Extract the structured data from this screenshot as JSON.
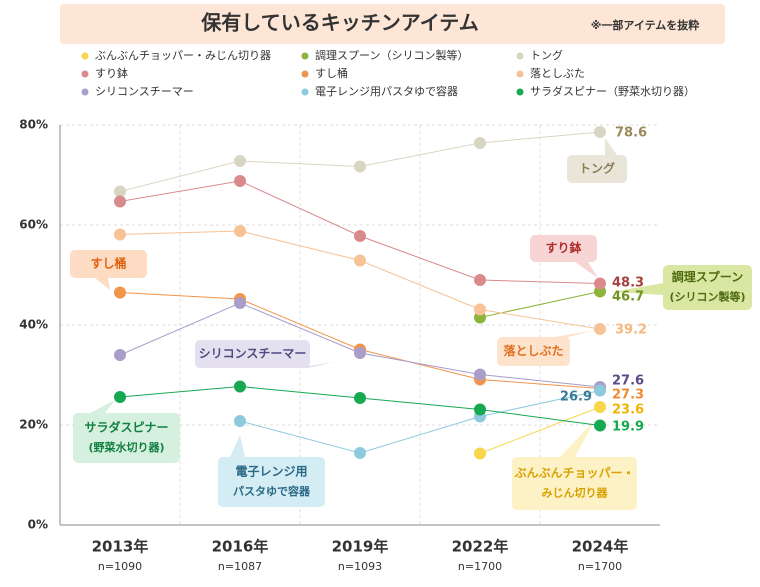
{
  "chart_data": {
    "type": "line",
    "title": "保有しているキッチンアイテム",
    "note": "※一部アイテムを抜粋",
    "categories": [
      "2013年",
      "2016年",
      "2019年",
      "2022年",
      "2024年"
    ],
    "category_notes": [
      "n=1090",
      "n=1087",
      "n=1093",
      "n=1700",
      "n=1700"
    ],
    "ylim": [
      0,
      80
    ],
    "yticks": [
      {
        "value": 0,
        "label": "0%"
      },
      {
        "value": 20,
        "label": "20%"
      },
      {
        "value": 40,
        "label": "40%"
      },
      {
        "value": 60,
        "label": "60%"
      },
      {
        "value": 80,
        "label": "80%"
      }
    ],
    "grid": true,
    "series": [
      {
        "name": "ぶんぶんチョッパー・みじん切り器",
        "color": "#f7d64a",
        "label_color": "#f0b400",
        "callout": [
          "ぶんぶんチョッパー・",
          "みじん切り器"
        ],
        "values": [
          null,
          null,
          null,
          14.3,
          23.6
        ]
      },
      {
        "name": "調理スプーン（シリコン製等）",
        "color": "#8db33a",
        "label_color": "#6f9420",
        "callout": [
          "調理スプーン",
          "(シリコン製等)"
        ],
        "values": [
          null,
          null,
          null,
          41.5,
          46.7
        ]
      },
      {
        "name": "トング",
        "color": "#d9d5c3",
        "label_color": "#9a8a5a",
        "callout": [
          "トング"
        ],
        "values": [
          66.7,
          72.8,
          71.7,
          76.4,
          78.6
        ]
      },
      {
        "name": "すり鉢",
        "color": "#d98a8c",
        "label_color": "#a8403f",
        "callout": [
          "すり鉢"
        ],
        "values": [
          64.7,
          68.8,
          57.8,
          49.0,
          48.3
        ]
      },
      {
        "name": "すし桶",
        "color": "#f0954a",
        "label_color": "#f08a30",
        "callout": [
          "すし桶"
        ],
        "values": [
          46.5,
          45.2,
          35.1,
          29.1,
          27.3
        ]
      },
      {
        "name": "落としぶた",
        "color": "#f7c295",
        "label_color": "#f5b880",
        "callout": [
          "落としぶた"
        ],
        "values": [
          58.1,
          58.8,
          52.9,
          43.1,
          39.2
        ]
      },
      {
        "name": "シリコンスチーマー",
        "color": "#a99dc9",
        "label_color": "#5a4a85",
        "callout": [
          "シリコンスチーマー"
        ],
        "values": [
          34.0,
          44.4,
          34.4,
          30.1,
          27.6
        ]
      },
      {
        "name": "電子レンジ用パスタゆで容器",
        "color": "#8ec9dd",
        "label_color": "#3a7a95",
        "callout": [
          "電子レンジ用",
          "パスタゆで容器"
        ],
        "values": [
          null,
          20.8,
          14.4,
          21.7,
          26.9
        ]
      },
      {
        "name": "サラダスピナー（野菜水切り器）",
        "color": "#17a852",
        "label_color": "#17a852",
        "callout": [
          "サラダスピナー",
          "(野菜水切り器)"
        ],
        "values": [
          25.6,
          27.7,
          25.4,
          23.1,
          19.9
        ]
      }
    ]
  }
}
